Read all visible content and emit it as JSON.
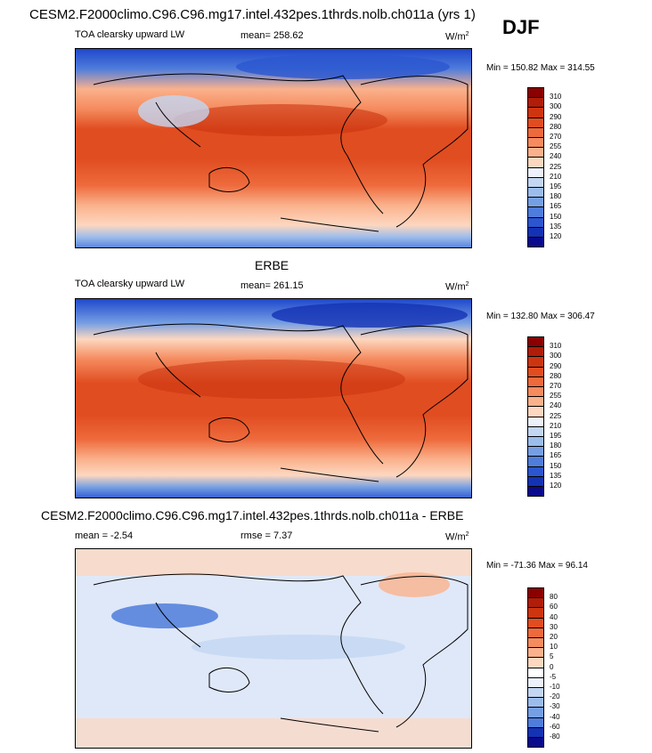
{
  "title": "CESM2.F2000climo.C96.C96.mg17.intel.432pes.1thrds.nolb.ch011a (yrs 1)",
  "season": "DJF",
  "panels": [
    {
      "title": "",
      "left_label": "TOA clearsky upward LW",
      "center_label": "mean= 258.62",
      "units": "W/m",
      "units_sup": "2",
      "stats": "Min = 150.82 Max = 314.55",
      "colorbar": {
        "levels": [
          "310",
          "300",
          "290",
          "280",
          "270",
          "255",
          "240",
          "225",
          "210",
          "195",
          "180",
          "165",
          "150",
          "135",
          "120"
        ],
        "colors": [
          "#8b0000",
          "#b01d08",
          "#cc3510",
          "#e04d21",
          "#ee6a3c",
          "#f58b5e",
          "#fab18c",
          "#fdd7c0",
          "#ecf1fb",
          "#c3d6f2",
          "#9cbcec",
          "#769fe3",
          "#4f7ddb",
          "#2b56d0",
          "#1432b4",
          "#0a0a8c"
        ]
      }
    },
    {
      "title": "ERBE",
      "left_label": "TOA clearsky upward LW",
      "center_label": "mean= 261.15",
      "units": "W/m",
      "units_sup": "2",
      "stats": "Min = 132.80 Max = 306.47",
      "colorbar": {
        "levels": [
          "310",
          "300",
          "290",
          "280",
          "270",
          "255",
          "240",
          "225",
          "210",
          "195",
          "180",
          "165",
          "150",
          "135",
          "120"
        ],
        "colors": [
          "#8b0000",
          "#b01d08",
          "#cc3510",
          "#e04d21",
          "#ee6a3c",
          "#f58b5e",
          "#fab18c",
          "#fdd7c0",
          "#ecf1fb",
          "#c3d6f2",
          "#9cbcec",
          "#769fe3",
          "#4f7ddb",
          "#2b56d0",
          "#1432b4",
          "#0a0a8c"
        ]
      }
    },
    {
      "title": "CESM2.F2000climo.C96.C96.mg17.intel.432pes.1thrds.nolb.ch011a - ERBE",
      "left_label": "mean =  -2.54",
      "center_label": "rmse =   7.37",
      "units": "W/m",
      "units_sup": "2",
      "stats": "Min = -71.36 Max =  96.14",
      "colorbar": {
        "levels": [
          "80",
          "60",
          "40",
          "30",
          "20",
          "10",
          "5",
          "0",
          "-5",
          "-10",
          "-20",
          "-30",
          "-40",
          "-60",
          "-80"
        ],
        "colors": [
          "#8b0000",
          "#b01d08",
          "#cc3510",
          "#e04d21",
          "#ee6a3c",
          "#f58b5e",
          "#fab18c",
          "#fdd7c0",
          "#ffffff",
          "#ecf1fb",
          "#c3d6f2",
          "#9cbcec",
          "#769fe3",
          "#4f7ddb",
          "#1432b4",
          "#0a0a8c"
        ]
      }
    }
  ],
  "chart_data": [
    {
      "type": "heatmap",
      "title": "TOA clearsky upward LW",
      "subtitle": "CESM2 model, DJF",
      "mean": 258.62,
      "min": 150.82,
      "max": 314.55,
      "units": "W/m2",
      "color_levels": [
        120,
        135,
        150,
        165,
        180,
        195,
        210,
        225,
        240,
        255,
        270,
        280,
        290,
        300,
        310
      ],
      "pattern": "zonal: high in tropics/subtropics (~280-300), low at poles (~150-200)"
    },
    {
      "type": "heatmap",
      "title": "ERBE",
      "subtitle": "TOA clearsky upward LW",
      "mean": 261.15,
      "min": 132.8,
      "max": 306.47,
      "units": "W/m2",
      "color_levels": [
        120,
        135,
        150,
        165,
        180,
        195,
        210,
        225,
        240,
        255,
        270,
        280,
        290,
        300,
        310
      ]
    },
    {
      "type": "heatmap",
      "title": "CESM2 - ERBE",
      "mean": -2.54,
      "rmse": 7.37,
      "min": -71.36,
      "max": 96.14,
      "units": "W/m2",
      "color_levels": [
        -80,
        -60,
        -40,
        -30,
        -20,
        -10,
        -5,
        0,
        5,
        10,
        20,
        30,
        40,
        60,
        80
      ]
    }
  ]
}
